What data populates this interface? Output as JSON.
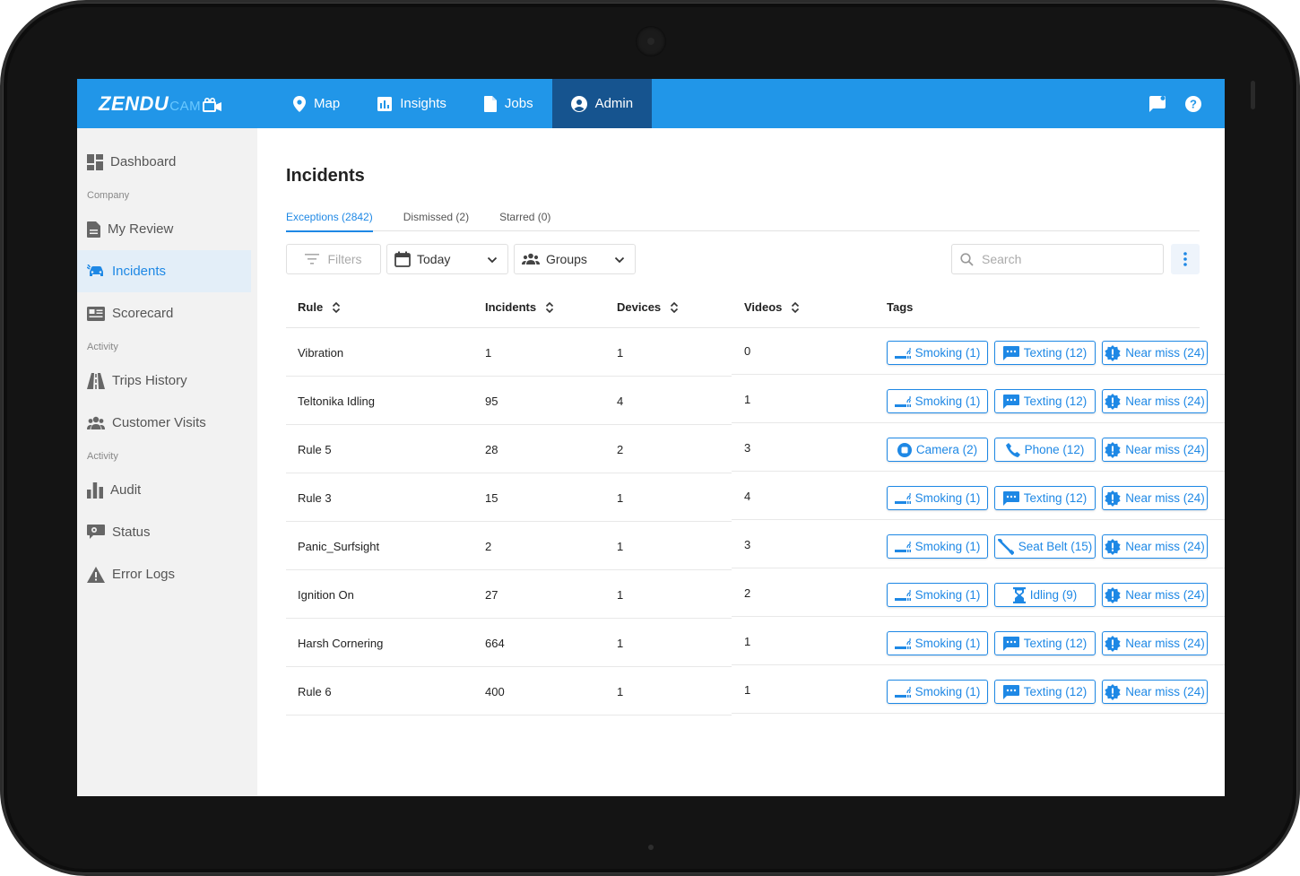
{
  "app": {
    "logo_main": "ZENDU",
    "logo_sub": "CAM"
  },
  "nav": {
    "items": [
      {
        "label": "Map",
        "icon": "map-pin-icon"
      },
      {
        "label": "Insights",
        "icon": "chart-icon"
      },
      {
        "label": "Jobs",
        "icon": "document-icon"
      },
      {
        "label": "Admin",
        "icon": "account-circle-icon"
      }
    ],
    "active": "Admin"
  },
  "sidebar": {
    "items": [
      {
        "label": "Dashboard"
      },
      {
        "section": "Company"
      },
      {
        "label": "My Review"
      },
      {
        "label": "Incidents"
      },
      {
        "label": "Scorecard"
      },
      {
        "section": "Activity"
      },
      {
        "label": "Trips History"
      },
      {
        "label": "Customer Visits"
      },
      {
        "section": "Activity"
      },
      {
        "label": "Audit"
      },
      {
        "label": "Status"
      },
      {
        "label": "Error Logs"
      }
    ],
    "active": "Incidents"
  },
  "page": {
    "title": "Incidents",
    "tabs": [
      {
        "label": "Exceptions (2842)"
      },
      {
        "label": "Dismissed (2)"
      },
      {
        "label": "Starred (0)"
      }
    ],
    "active_tab": "Exceptions (2842)"
  },
  "toolbar": {
    "filters_label": "Filters",
    "date_value": "Today",
    "groups_value": "Groups",
    "search_placeholder": "Search"
  },
  "table": {
    "columns": [
      "Rule",
      "Incidents",
      "Devices",
      "Videos",
      "Tags"
    ],
    "rows": [
      {
        "rule": "Vibration",
        "incidents": "1",
        "devices": "1",
        "videos": "0",
        "tags": [
          "Smoking (1)",
          "Texting (12)",
          "Near miss (24)"
        ]
      },
      {
        "rule": "Teltonika Idling",
        "incidents": "95",
        "devices": "4",
        "videos": "1",
        "tags": [
          "Smoking (1)",
          "Texting (12)",
          "Near miss (24)"
        ]
      },
      {
        "rule": "Rule 5",
        "incidents": "28",
        "devices": "2",
        "videos": "3",
        "tags": [
          "Camera (2)",
          "Phone (12)",
          "Near miss (24)"
        ]
      },
      {
        "rule": "Rule 3",
        "incidents": "15",
        "devices": "1",
        "videos": "4",
        "tags": [
          "Smoking (1)",
          "Texting (12)",
          "Near miss (24)"
        ]
      },
      {
        "rule": "Panic_Surfsight",
        "incidents": "2",
        "devices": "1",
        "videos": "3",
        "tags": [
          "Smoking (1)",
          "Seat Belt (15)",
          "Near miss (24)"
        ]
      },
      {
        "rule": "Ignition On",
        "incidents": "27",
        "devices": "1",
        "videos": "2",
        "tags": [
          "Smoking (1)",
          "Idling (9)",
          "Near miss (24)"
        ]
      },
      {
        "rule": "Harsh Cornering",
        "incidents": "664",
        "devices": "1",
        "videos": "1",
        "tags": [
          "Smoking (1)",
          "Texting (12)",
          "Near miss (24)"
        ]
      },
      {
        "rule": "Rule 6",
        "incidents": "400",
        "devices": "1",
        "videos": "1",
        "tags": [
          "Smoking (1)",
          "Texting (12)",
          "Near miss (24)"
        ]
      }
    ]
  },
  "colors": {
    "primary": "#2196e8",
    "nav_active": "#16548f",
    "accent": "#1e88e5",
    "sidebar_bg": "#f2f2f2"
  }
}
